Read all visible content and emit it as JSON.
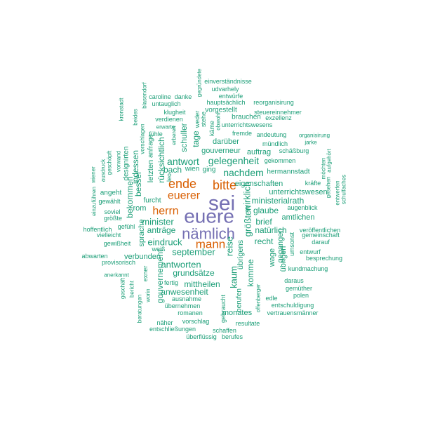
{
  "colors": {
    "primary": "#7570b3",
    "secondary": "#d95f02",
    "tertiary": "#1b9e77",
    "background": "#ffffff"
  },
  "words": [
    {
      "text": "euere",
      "tier": "primary"
    },
    {
      "text": "sei",
      "tier": "primary"
    },
    {
      "text": "nämlich",
      "tier": "primary"
    },
    {
      "text": "ende",
      "tier": "secondary"
    },
    {
      "text": "bitte",
      "tier": "secondary"
    },
    {
      "text": "euerer",
      "tier": "secondary"
    },
    {
      "text": "herrn",
      "tier": "secondary"
    },
    {
      "text": "mann",
      "tier": "secondary"
    },
    {
      "text": "einverständnisse",
      "tier": "tertiary"
    },
    {
      "text": "udvarhely",
      "tier": "tertiary"
    },
    {
      "text": "entwürfe",
      "tier": "tertiary"
    },
    {
      "text": "gegründete",
      "tier": "tertiary"
    },
    {
      "text": "caroline",
      "tier": "tertiary"
    },
    {
      "text": "danke",
      "tier": "tertiary"
    },
    {
      "text": "hauptsächlich",
      "tier": "tertiary"
    },
    {
      "text": "reorganisirung",
      "tier": "tertiary"
    },
    {
      "text": "untauglich",
      "tier": "tertiary"
    },
    {
      "text": "blasendorf",
      "tier": "tertiary"
    },
    {
      "text": "klugheit",
      "tier": "tertiary"
    },
    {
      "text": "vorgestellt",
      "tier": "tertiary"
    },
    {
      "text": "steuereinnehmer",
      "tier": "tertiary"
    },
    {
      "text": "kronstadt",
      "tier": "tertiary"
    },
    {
      "text": "verdienen",
      "tier": "tertiary"
    },
    {
      "text": "brauchen",
      "tier": "tertiary"
    },
    {
      "text": "exzellenz",
      "tier": "tertiary"
    },
    {
      "text": "beides",
      "tier": "tertiary"
    },
    {
      "text": "erwarte",
      "tier": "tertiary"
    },
    {
      "text": "unterrichtswesens",
      "tier": "tertiary"
    },
    {
      "text": "weder",
      "tier": "tertiary"
    },
    {
      "text": "stehe",
      "tier": "tertiary"
    },
    {
      "text": "obwohl",
      "tier": "tertiary"
    },
    {
      "text": "fühle",
      "tier": "tertiary"
    },
    {
      "text": "käme",
      "tier": "tertiary"
    },
    {
      "text": "fremde",
      "tier": "tertiary"
    },
    {
      "text": "andeutung",
      "tier": "tertiary"
    },
    {
      "text": "organisirung",
      "tier": "tertiary"
    },
    {
      "text": "vorschlagen",
      "tier": "tertiary"
    },
    {
      "text": "schuller",
      "tier": "tertiary"
    },
    {
      "text": "tage",
      "tier": "tertiary"
    },
    {
      "text": "darüber",
      "tier": "tertiary"
    },
    {
      "text": "mündlich",
      "tier": "tertiary"
    },
    {
      "text": "jarke",
      "tier": "tertiary"
    },
    {
      "text": "anfrage",
      "tier": "tertiary"
    },
    {
      "text": "erbereit",
      "tier": "tertiary"
    },
    {
      "text": "gouverneur",
      "tier": "tertiary"
    },
    {
      "text": "auftrag",
      "tier": "tertiary"
    },
    {
      "text": "schäßburg",
      "tier": "tertiary"
    },
    {
      "text": "vorwand",
      "tier": "tertiary"
    },
    {
      "text": "geschöpft",
      "tier": "tertiary"
    },
    {
      "text": "designirten",
      "tier": "tertiary"
    },
    {
      "text": "indessen",
      "tier": "tertiary"
    },
    {
      "text": "rücksichtlich",
      "tier": "tertiary"
    },
    {
      "text": "antwort",
      "tier": "tertiary"
    },
    {
      "text": "gelegenheit",
      "tier": "tertiary"
    },
    {
      "text": "gekommen",
      "tier": "tertiary"
    },
    {
      "text": "aufgehört",
      "tier": "tertiary"
    },
    {
      "text": "ausdruck",
      "tier": "tertiary"
    },
    {
      "text": "wiener",
      "tier": "tertiary"
    },
    {
      "text": "letzten",
      "tier": "tertiary"
    },
    {
      "text": "bach",
      "tier": "tertiary"
    },
    {
      "text": "wien",
      "tier": "tertiary"
    },
    {
      "text": "ging",
      "tier": "tertiary"
    },
    {
      "text": "nachdem",
      "tier": "tertiary"
    },
    {
      "text": "hermannstadt",
      "tier": "tertiary"
    },
    {
      "text": "möchten",
      "tier": "tertiary"
    },
    {
      "text": "leo",
      "tier": "tertiary"
    },
    {
      "text": "besser",
      "tier": "tertiary"
    },
    {
      "text": "eigenschaften",
      "tier": "tertiary"
    },
    {
      "text": "kräfte",
      "tier": "tertiary"
    },
    {
      "text": "angeht",
      "tier": "tertiary"
    },
    {
      "text": "unterrichtswesen",
      "tier": "tertiary"
    },
    {
      "text": "gesehen",
      "tier": "tertiary"
    },
    {
      "text": "einzuführen",
      "tier": "tertiary"
    },
    {
      "text": "bekommen",
      "tier": "tertiary"
    },
    {
      "text": "gewählt",
      "tier": "tertiary"
    },
    {
      "text": "furcht",
      "tier": "tertiary"
    },
    {
      "text": "ministerialrath",
      "tier": "tertiary"
    },
    {
      "text": "entwerfen",
      "tier": "tertiary"
    },
    {
      "text": "wirklich",
      "tier": "tertiary"
    },
    {
      "text": "schulfaches",
      "tier": "tertiary"
    },
    {
      "text": "rom",
      "tier": "tertiary"
    },
    {
      "text": "glaube",
      "tier": "tertiary"
    },
    {
      "text": "augenblick",
      "tier": "tertiary"
    },
    {
      "text": "soviel",
      "tier": "tertiary"
    },
    {
      "text": "größte",
      "tier": "tertiary"
    },
    {
      "text": "amtlichen",
      "tier": "tertiary"
    },
    {
      "text": "vielleicht",
      "tier": "tertiary"
    },
    {
      "text": "minister",
      "tier": "tertiary"
    },
    {
      "text": "brief",
      "tier": "tertiary"
    },
    {
      "text": "gemeinschaft",
      "tier": "tertiary"
    },
    {
      "text": "hoffentlich",
      "tier": "tertiary"
    },
    {
      "text": "gefühl",
      "tier": "tertiary"
    },
    {
      "text": "anträge",
      "tier": "tertiary"
    },
    {
      "text": "größten",
      "tier": "tertiary"
    },
    {
      "text": "darauf",
      "tier": "tertiary"
    },
    {
      "text": "natürlich",
      "tier": "tertiary"
    },
    {
      "text": "veröffentlichen",
      "tier": "tertiary"
    },
    {
      "text": "eindruck",
      "tier": "tertiary"
    },
    {
      "text": "recht",
      "tier": "tertiary"
    },
    {
      "text": "gewißheit",
      "tier": "tertiary"
    },
    {
      "text": "sprache",
      "tier": "tertiary"
    },
    {
      "text": "weiß",
      "tier": "tertiary"
    },
    {
      "text": "gegangen",
      "tier": "tertiary"
    },
    {
      "text": "entwurf",
      "tier": "tertiary"
    },
    {
      "text": "abwarten",
      "tier": "tertiary"
    },
    {
      "text": "verbunden",
      "tier": "tertiary"
    },
    {
      "text": "september",
      "tier": "tertiary"
    },
    {
      "text": "umsonst",
      "tier": "tertiary"
    },
    {
      "text": "besprechung",
      "tier": "tertiary"
    },
    {
      "text": "provisorisch",
      "tier": "tertiary"
    },
    {
      "text": "reise",
      "tier": "tertiary"
    },
    {
      "text": "übrigens",
      "tier": "tertiary"
    },
    {
      "text": "kundmachung",
      "tier": "tertiary"
    },
    {
      "text": "antworten",
      "tier": "tertiary"
    },
    {
      "text": "übrigen",
      "tier": "tertiary"
    },
    {
      "text": "wage",
      "tier": "tertiary"
    },
    {
      "text": "anerkannt",
      "tier": "tertiary"
    },
    {
      "text": "grundsätze",
      "tier": "tertiary"
    },
    {
      "text": "kaum",
      "tier": "tertiary"
    },
    {
      "text": "komme",
      "tier": "tertiary"
    },
    {
      "text": "gouvernement",
      "tier": "tertiary"
    },
    {
      "text": "exner",
      "tier": "tertiary"
    },
    {
      "text": "fertig",
      "tier": "tertiary"
    },
    {
      "text": "mittheilen",
      "tier": "tertiary"
    },
    {
      "text": "daraus",
      "tier": "tertiary"
    },
    {
      "text": "geschäft",
      "tier": "tertiary"
    },
    {
      "text": "bericht",
      "tier": "tertiary"
    },
    {
      "text": "gemüther",
      "tier": "tertiary"
    },
    {
      "text": "anwesenheit",
      "tier": "tertiary"
    },
    {
      "text": "polen",
      "tier": "tertiary"
    },
    {
      "text": "worin",
      "tier": "tertiary"
    },
    {
      "text": "ausnahme",
      "tier": "tertiary"
    },
    {
      "text": "edle",
      "tier": "tertiary"
    },
    {
      "text": "entschuldigung",
      "tier": "tertiary"
    },
    {
      "text": "beratungen",
      "tier": "tertiary"
    },
    {
      "text": "übernehmen",
      "tier": "tertiary"
    },
    {
      "text": "berufen",
      "tier": "tertiary"
    },
    {
      "text": "romanen",
      "tier": "tertiary"
    },
    {
      "text": "gebraucht",
      "tier": "tertiary"
    },
    {
      "text": "monates",
      "tier": "tertiary"
    },
    {
      "text": "vertrauensmänner",
      "tier": "tertiary"
    },
    {
      "text": "offenberger",
      "tier": "tertiary"
    },
    {
      "text": "näher",
      "tier": "tertiary"
    },
    {
      "text": "vorschlag",
      "tier": "tertiary"
    },
    {
      "text": "resultate",
      "tier": "tertiary"
    },
    {
      "text": "entschließungen",
      "tier": "tertiary"
    },
    {
      "text": "schaffen",
      "tier": "tertiary"
    },
    {
      "text": "überflüssig",
      "tier": "tertiary"
    },
    {
      "text": "berufes",
      "tier": "tertiary"
    }
  ]
}
